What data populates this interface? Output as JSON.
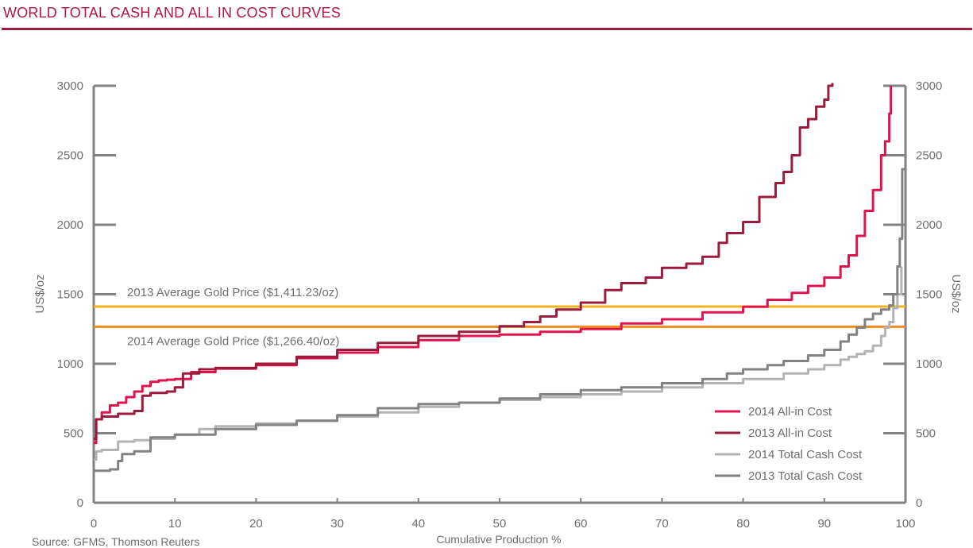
{
  "page": {
    "title": "WORLD TOTAL CASH AND ALL IN COST CURVES",
    "source": "Source: GFMS, Thomson Reuters"
  },
  "colors": {
    "brand": "#a01d3c",
    "axis": "#808285",
    "text": "#6d6e71",
    "price2013": "#f4b21e",
    "price2014": "#f28b1d"
  },
  "chart_data": {
    "type": "line",
    "xlabel": "Cumulative Production %",
    "ylabel": "US$/oz",
    "ylabel_right": "US$/oz",
    "xlim": [
      0,
      100
    ],
    "ylim": [
      0,
      3000
    ],
    "x_ticks": [
      "0",
      "10",
      "20",
      "30",
      "40",
      "50",
      "60",
      "70",
      "80",
      "90",
      "100"
    ],
    "y_ticks": [
      "0",
      "500",
      "1000",
      "1500",
      "2000",
      "2500",
      "3000"
    ],
    "grid": false,
    "legend_position": "bottom-right",
    "reference_lines": [
      {
        "label": "2013 Average Gold Price ($1,411.23/oz)",
        "value": 1411.23,
        "color": "#f4b21e"
      },
      {
        "label": "2014 Average Gold Price ($1,266.40/oz)",
        "value": 1266.4,
        "color": "#f28b1d"
      }
    ],
    "series": [
      {
        "name": "2014 All-in Cost",
        "color": "#e0144c",
        "x": [
          0,
          0.3,
          1,
          2,
          3,
          4,
          5,
          6,
          7,
          8,
          9,
          10,
          12,
          15,
          20,
          25,
          30,
          35,
          40,
          45,
          50,
          55,
          60,
          65,
          70,
          75,
          80,
          83,
          86,
          88,
          90,
          92,
          93,
          94,
          95,
          96,
          97,
          97.5,
          98,
          98.2
        ],
        "values": [
          430,
          600,
          650,
          700,
          720,
          760,
          800,
          840,
          870,
          880,
          885,
          890,
          940,
          965,
          990,
          1040,
          1080,
          1120,
          1170,
          1200,
          1210,
          1230,
          1250,
          1290,
          1320,
          1370,
          1410,
          1460,
          1510,
          1560,
          1620,
          1700,
          1780,
          1920,
          2100,
          2250,
          2500,
          2600,
          2800,
          3000
        ]
      },
      {
        "name": "2013 All-in Cost",
        "color": "#9b1b3a",
        "x": [
          0,
          0.3,
          1,
          3,
          5,
          6,
          7,
          9,
          10,
          11,
          13,
          15,
          20,
          25,
          30,
          35,
          40,
          45,
          50,
          53,
          55,
          57,
          60,
          63,
          65,
          68,
          70,
          73,
          75,
          77,
          78,
          80,
          82,
          84,
          85,
          86,
          87,
          88,
          89,
          90,
          90.5,
          91
        ],
        "values": [
          460,
          600,
          620,
          640,
          660,
          770,
          790,
          800,
          830,
          930,
          960,
          970,
          1000,
          1050,
          1100,
          1150,
          1200,
          1230,
          1270,
          1300,
          1340,
          1390,
          1440,
          1530,
          1580,
          1620,
          1690,
          1720,
          1770,
          1870,
          1940,
          2020,
          2200,
          2300,
          2380,
          2500,
          2700,
          2760,
          2850,
          2900,
          3000,
          3020
        ]
      },
      {
        "name": "2014 Total Cash Cost",
        "color": "#b3b3b3",
        "x": [
          0,
          0.3,
          1,
          3,
          5,
          7,
          10,
          13,
          15,
          20,
          25,
          30,
          35,
          40,
          45,
          50,
          55,
          60,
          65,
          70,
          75,
          80,
          85,
          88,
          90,
          92,
          93,
          94,
          95,
          96,
          97,
          97.5,
          98,
          98.5,
          99,
          99.5
        ],
        "values": [
          310,
          370,
          380,
          440,
          450,
          460,
          490,
          530,
          550,
          570,
          590,
          620,
          650,
          690,
          720,
          740,
          760,
          780,
          800,
          830,
          860,
          890,
          930,
          960,
          990,
          1030,
          1050,
          1070,
          1090,
          1130,
          1200,
          1260,
          1300,
          1400,
          1500,
          1700
        ]
      },
      {
        "name": "2013 Total Cash Cost",
        "color": "#808285",
        "x": [
          0,
          2,
          3,
          3.5,
          5,
          7,
          10,
          15,
          20,
          25,
          30,
          35,
          40,
          45,
          50,
          55,
          60,
          65,
          70,
          75,
          78,
          80,
          83,
          85,
          88,
          90,
          92,
          93,
          94,
          95,
          96,
          97,
          98,
          98.5,
          99,
          99.3,
          99.6,
          100
        ],
        "values": [
          230,
          240,
          300,
          350,
          370,
          470,
          490,
          530,
          560,
          590,
          630,
          680,
          710,
          720,
          750,
          780,
          810,
          830,
          860,
          890,
          930,
          960,
          990,
          1020,
          1060,
          1100,
          1160,
          1210,
          1260,
          1320,
          1360,
          1390,
          1420,
          1500,
          1700,
          1900,
          2400,
          2700
        ]
      }
    ]
  }
}
